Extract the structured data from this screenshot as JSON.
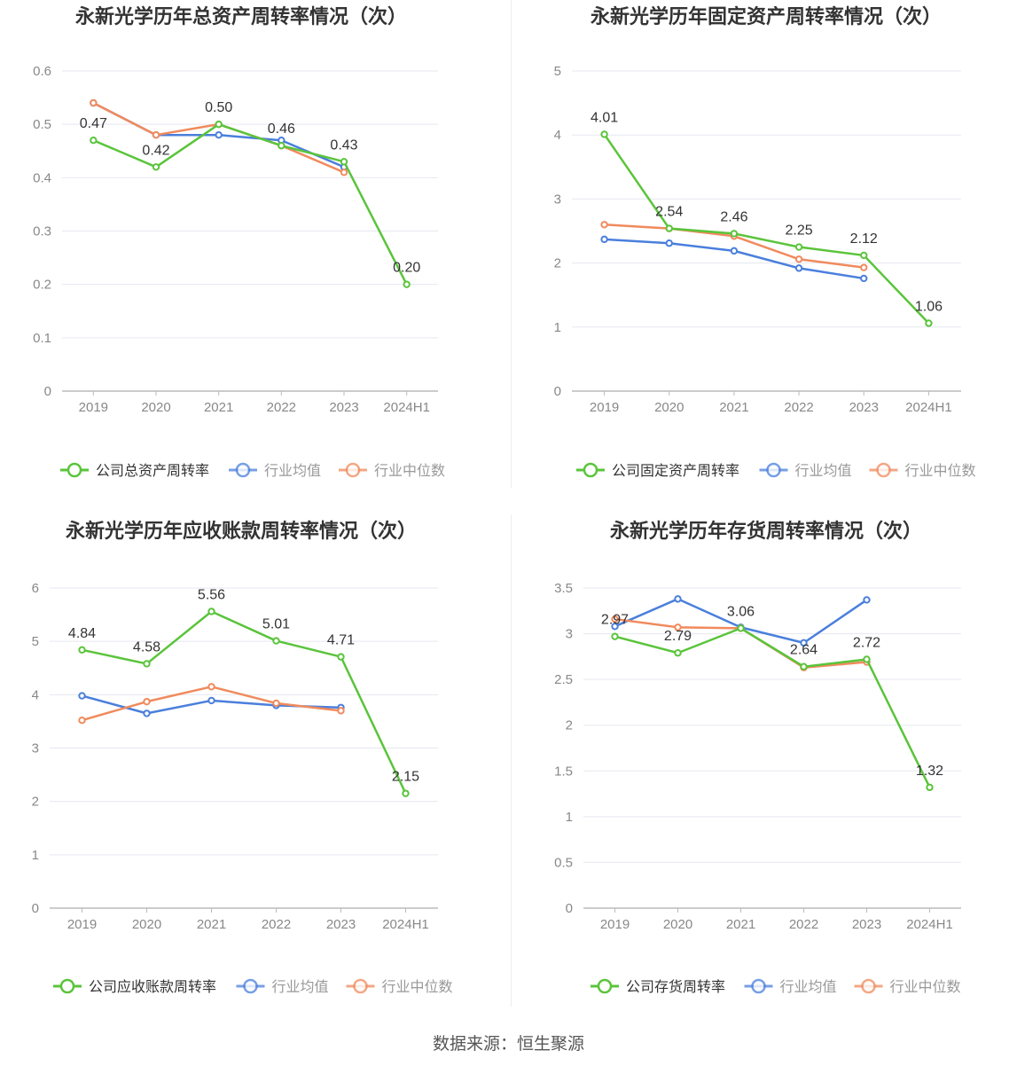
{
  "colors": {
    "company": "#5ac43b",
    "avg": "#4a7fdc",
    "median": "#f08a5d",
    "grid": "#e6e8f0",
    "axis": "#bbbbbb",
    "text": "#888888",
    "label": "#333333",
    "title": "#333333"
  },
  "source": "数据来源：恒生聚源",
  "chart_data": [
    {
      "type": "line",
      "title": "永新光学历年总资产周转率情况（次）",
      "categories": [
        "2019",
        "2020",
        "2021",
        "2022",
        "2023",
        "2024H1"
      ],
      "yticks": [
        "0",
        "0.1",
        "0.2",
        "0.3",
        "0.4",
        "0.5",
        "0.6"
      ],
      "ylim": [
        0,
        0.6
      ],
      "legend_position": "bottom",
      "series": [
        {
          "name": "公司总资产周转率",
          "key": "company",
          "values": [
            0.47,
            0.42,
            0.5,
            0.46,
            0.43,
            0.2
          ],
          "labels": [
            "0.47",
            "0.42",
            "0.50",
            "0.46",
            "0.43",
            "0.20"
          ]
        },
        {
          "name": "行业均值",
          "key": "avg",
          "values": [
            0.54,
            0.48,
            0.48,
            0.47,
            0.42,
            null
          ]
        },
        {
          "name": "行业中位数",
          "key": "median",
          "values": [
            0.54,
            0.48,
            0.5,
            0.46,
            0.41,
            null
          ]
        }
      ]
    },
    {
      "type": "line",
      "title": "永新光学历年固定资产周转率情况（次）",
      "categories": [
        "2019",
        "2020",
        "2021",
        "2022",
        "2023",
        "2024H1"
      ],
      "yticks": [
        "0",
        "1",
        "2",
        "3",
        "4",
        "5"
      ],
      "ylim": [
        0,
        5
      ],
      "legend_position": "bottom",
      "series": [
        {
          "name": "公司固定资产周转率",
          "key": "company",
          "values": [
            4.01,
            2.54,
            2.46,
            2.25,
            2.12,
            1.06
          ],
          "labels": [
            "4.01",
            "2.54",
            "2.46",
            "2.25",
            "2.12",
            "1.06"
          ]
        },
        {
          "name": "行业均值",
          "key": "avg",
          "values": [
            2.37,
            2.31,
            2.19,
            1.92,
            1.76,
            null
          ]
        },
        {
          "name": "行业中位数",
          "key": "median",
          "values": [
            2.6,
            2.54,
            2.42,
            2.06,
            1.93,
            null
          ]
        }
      ]
    },
    {
      "type": "line",
      "title": "永新光学历年应收账款周转率情况（次）",
      "categories": [
        "2019",
        "2020",
        "2021",
        "2022",
        "2023",
        "2024H1"
      ],
      "yticks": [
        "0",
        "1",
        "2",
        "3",
        "4",
        "5",
        "6"
      ],
      "ylim": [
        0,
        6
      ],
      "legend_position": "bottom",
      "series": [
        {
          "name": "公司应收账款周转率",
          "key": "company",
          "values": [
            4.84,
            4.58,
            5.56,
            5.01,
            4.71,
            2.15
          ],
          "labels": [
            "4.84",
            "4.58",
            "5.56",
            "5.01",
            "4.71",
            "2.15"
          ]
        },
        {
          "name": "行业均值",
          "key": "avg",
          "values": [
            3.98,
            3.65,
            3.89,
            3.8,
            3.76,
            null
          ]
        },
        {
          "name": "行业中位数",
          "key": "median",
          "values": [
            3.52,
            3.87,
            4.15,
            3.84,
            3.7,
            null
          ]
        }
      ]
    },
    {
      "type": "line",
      "title": "永新光学历年存货周转率情况（次）",
      "categories": [
        "2019",
        "2020",
        "2021",
        "2022",
        "2023",
        "2024H1"
      ],
      "yticks": [
        "0",
        "0.5",
        "1",
        "1.5",
        "2",
        "2.5",
        "3",
        "3.5"
      ],
      "ylim": [
        0,
        3.5
      ],
      "legend_position": "bottom",
      "series": [
        {
          "name": "公司存货周转率",
          "key": "company",
          "values": [
            2.97,
            2.79,
            3.06,
            2.64,
            2.72,
            1.32
          ],
          "labels": [
            "2.97",
            "2.79",
            "3.06",
            "2.64",
            "2.72",
            "1.32"
          ]
        },
        {
          "name": "行业均值",
          "key": "avg",
          "values": [
            3.08,
            3.38,
            3.07,
            2.9,
            3.37,
            null
          ]
        },
        {
          "name": "行业中位数",
          "key": "median",
          "values": [
            3.16,
            3.07,
            3.06,
            2.63,
            2.69,
            null
          ]
        }
      ]
    }
  ]
}
